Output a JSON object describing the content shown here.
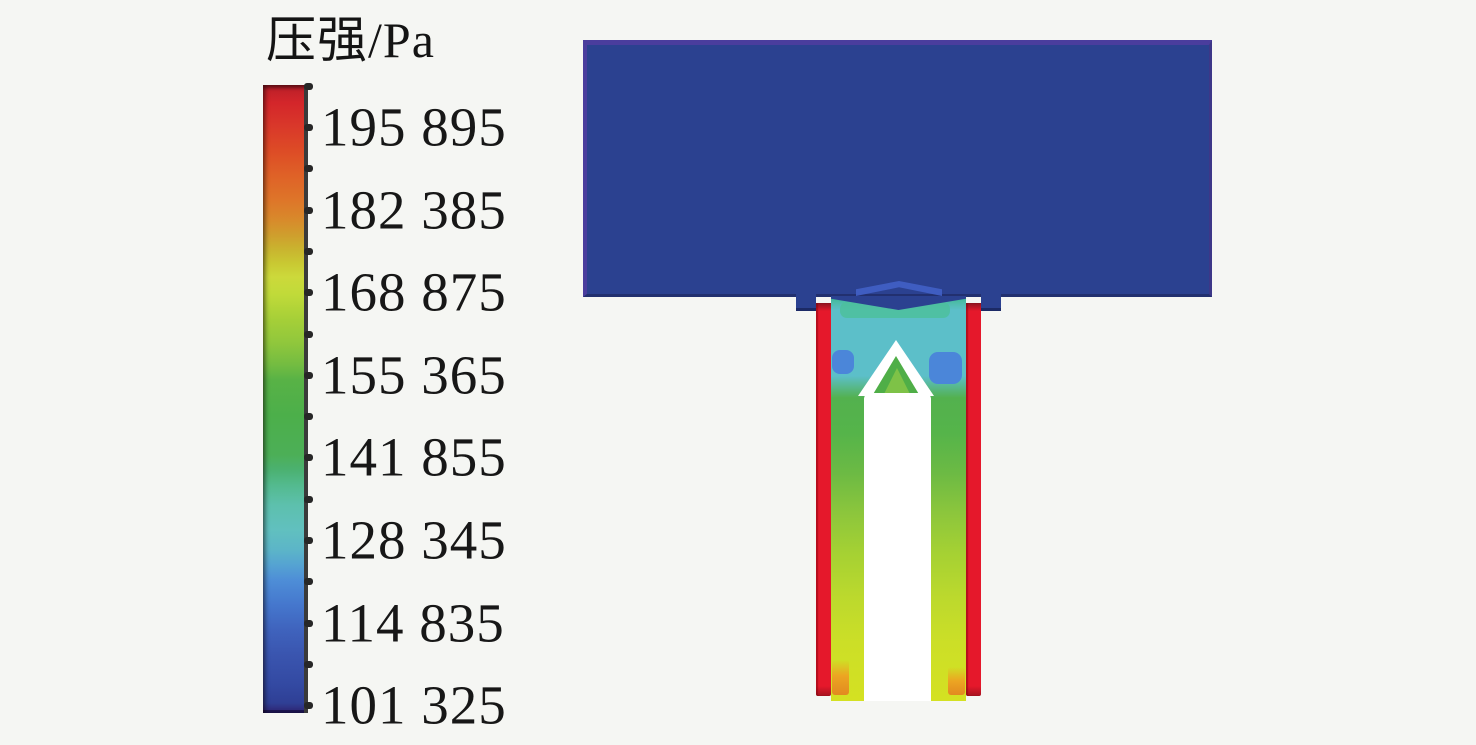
{
  "figure": {
    "kind": "CFD pressure contour plot",
    "background": "#f5f6f3"
  },
  "legend": {
    "title": "压强/Pa",
    "unit": "Pa",
    "labels": [
      "195 895",
      "182 385",
      "168 875",
      "155 365",
      "141 855",
      "128 345",
      "114 835",
      "101 325"
    ]
  },
  "chart_data": {
    "type": "heatmap",
    "title": "压强/Pa",
    "colorbar": {
      "label": "压强/Pa",
      "orientation": "vertical",
      "tick_values": [
        195895,
        182385,
        168875,
        155365,
        141855,
        128345,
        114835,
        101325
      ],
      "tick_step": 13510,
      "range": [
        101325,
        202650
      ],
      "colormap": "rainbow, red = high pressure, dark blue = low pressure",
      "colors_top_to_bottom": [
        "#c22129",
        "#dd4b26",
        "#de7529",
        "#c9c832",
        "#a5cf38",
        "#58b246",
        "#4bb171",
        "#5dc0ad",
        "#5cb5c8",
        "#4e8ed7",
        "#3f63bd",
        "#3349a2",
        "#2f2d7e"
      ]
    },
    "regions": [
      {
        "name": "upper-chamber",
        "description": "large rectangular chamber, uniform low pressure",
        "approx_pressure_pa": 101325,
        "color": "#2b4190"
      },
      {
        "name": "chamber-opening-chevron",
        "description": "slightly higher pressure band above nozzle inlet",
        "approx_pressure_pa": 108000,
        "color": "#4161c6"
      },
      {
        "name": "nozzle-walls",
        "description": "thin vertical wall strips at maximum pressure",
        "approx_pressure_pa": 195895,
        "color": "#e5182b"
      },
      {
        "name": "nozzle-inlet-teal",
        "description": "upper nozzle interior",
        "approx_pressure_pa": 128345,
        "color": "#5cbfc9"
      },
      {
        "name": "blue-pockets-beside-dome",
        "description": "low pressure pockets next to inner-tube dome",
        "approx_pressure_pa": 114835,
        "color": "#4b86d9"
      },
      {
        "name": "dome-core",
        "description": "green region inside white arch of inner tube tip",
        "approx_pressure_pa": 141855,
        "color": "#4fae47"
      },
      {
        "name": "annulus-mid",
        "description": "annular channel mid section",
        "approx_pressure_pa": 141855,
        "color": "#55b44a"
      },
      {
        "name": "annulus-lower",
        "description": "annular channel lower section",
        "approx_pressure_pa": 160000,
        "color": "#a5d133"
      },
      {
        "name": "nozzle-exit",
        "description": "bottom of annular channel",
        "approx_pressure_pa": 170000,
        "color": "#d4e122"
      },
      {
        "name": "wall-adjacent-exit-patches",
        "description": "orange patches near walls at exit",
        "approx_pressure_pa": 182385,
        "color": "#eca522"
      },
      {
        "name": "inner-tube",
        "description": "white solid inner tube with arched dome tip (no data)",
        "approx_pressure_pa": null,
        "color": "#ffffff"
      }
    ]
  }
}
